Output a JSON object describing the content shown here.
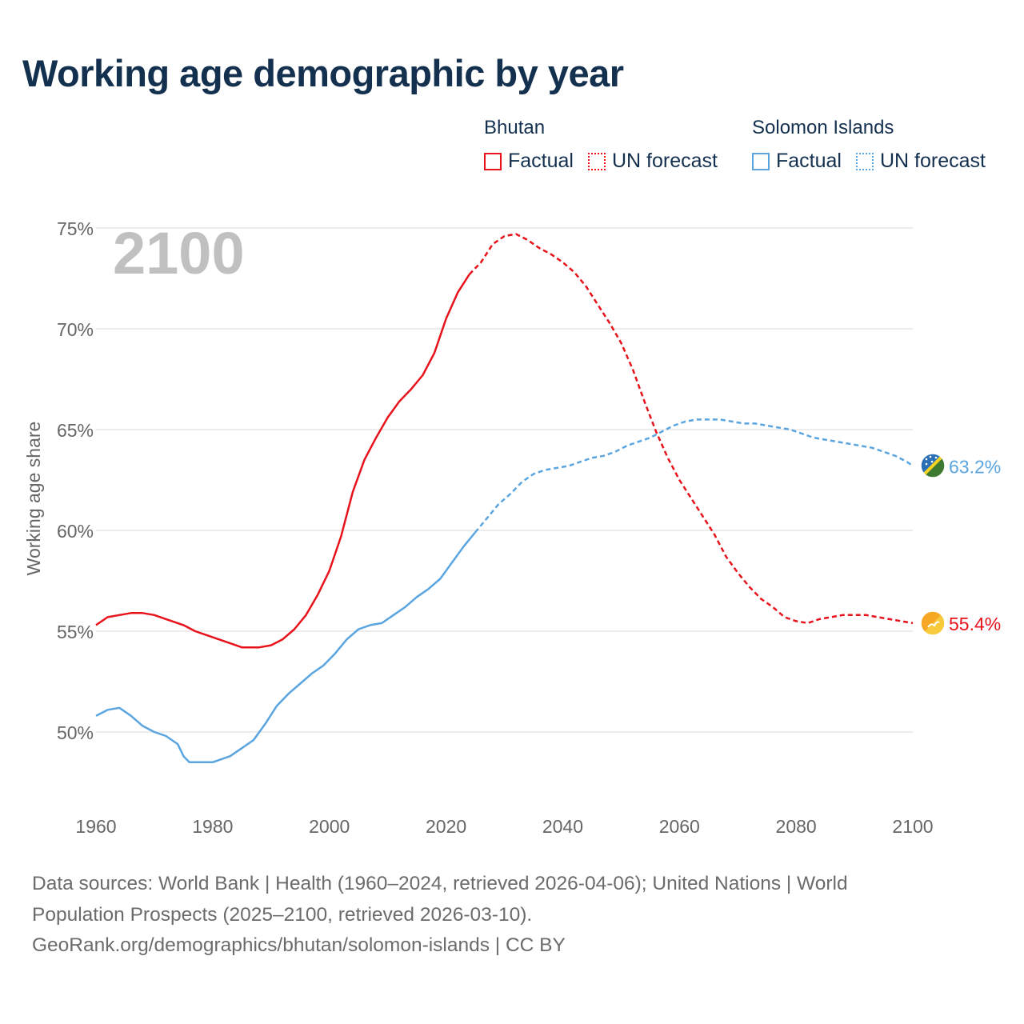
{
  "title": "Working age demographic by year",
  "legend": {
    "groups": [
      {
        "name": "Bhutan",
        "color": "#e8121b",
        "factual_label": "Factual",
        "forecast_label": "UN forecast"
      },
      {
        "name": "Solomon Islands",
        "color": "#5aa5e0",
        "factual_label": "Factual",
        "forecast_label": "UN forecast"
      }
    ]
  },
  "source": {
    "line1": "Data sources: World Bank | Health (1960–2024, retrieved 2026-04-06); United Nations | World",
    "line2": "Population Prospects (2025–2100, retrieved 2026-03-10).",
    "line3": "GeoRank.org/demographics/bhutan/solomon-islands | CC BY"
  },
  "chart_data": {
    "type": "line",
    "title": "Working age demographic by year",
    "year_label": "2100",
    "xlabel": "",
    "ylabel": "Working age share",
    "xlim": [
      1960,
      2100
    ],
    "ylim": [
      46,
      76
    ],
    "x_ticks": [
      {
        "value": 1960,
        "label": "1960"
      },
      {
        "value": 1980,
        "label": "1980"
      },
      {
        "value": 2000,
        "label": "2000"
      },
      {
        "value": 2020,
        "label": "2020"
      },
      {
        "value": 2040,
        "label": "2040"
      },
      {
        "value": 2060,
        "label": "2060"
      },
      {
        "value": 2080,
        "label": "2080"
      },
      {
        "value": 2100,
        "label": "2100"
      }
    ],
    "y_ticks": [
      {
        "value": 50,
        "label": "50%"
      },
      {
        "value": 55,
        "label": "55%"
      },
      {
        "value": 60,
        "label": "60%"
      },
      {
        "value": 65,
        "label": "65%"
      },
      {
        "value": 70,
        "label": "70%"
      },
      {
        "value": 75,
        "label": "75%"
      }
    ],
    "grid": true,
    "forecast_start": 2025,
    "series": [
      {
        "name": "Bhutan",
        "color": "#e8121b",
        "end_label": "55.4%",
        "flag": "bhutan-flag",
        "x": [
          1960,
          1962,
          1964,
          1966,
          1968,
          1970,
          1972,
          1975,
          1977,
          1980,
          1983,
          1985,
          1988,
          1990,
          1992,
          1994,
          1996,
          1998,
          2000,
          2002,
          2004,
          2006,
          2008,
          2010,
          2012,
          2014,
          2016,
          2018,
          2020,
          2022,
          2024,
          2026,
          2028,
          2030,
          2032,
          2034,
          2036,
          2038,
          2040,
          2042,
          2044,
          2046,
          2048,
          2050,
          2052,
          2054,
          2056,
          2058,
          2060,
          2062,
          2064,
          2066,
          2068,
          2070,
          2072,
          2074,
          2076,
          2078,
          2080,
          2082,
          2084,
          2086,
          2088,
          2090,
          2092,
          2094,
          2096,
          2098,
          2100
        ],
        "y": [
          55.3,
          55.7,
          55.8,
          55.9,
          55.9,
          55.8,
          55.6,
          55.3,
          55.0,
          54.7,
          54.4,
          54.2,
          54.2,
          54.3,
          54.6,
          55.1,
          55.8,
          56.8,
          58.0,
          59.7,
          61.9,
          63.5,
          64.6,
          65.6,
          66.4,
          67.0,
          67.7,
          68.8,
          70.5,
          71.8,
          72.7,
          73.3,
          74.2,
          74.6,
          74.7,
          74.4,
          74.0,
          73.7,
          73.3,
          72.8,
          72.1,
          71.2,
          70.3,
          69.3,
          68.0,
          66.4,
          64.9,
          63.6,
          62.5,
          61.6,
          60.7,
          59.8,
          58.7,
          57.9,
          57.2,
          56.6,
          56.2,
          55.7,
          55.5,
          55.4,
          55.6,
          55.7,
          55.8,
          55.8,
          55.8,
          55.7,
          55.6,
          55.5,
          55.4
        ]
      },
      {
        "name": "Solomon Islands",
        "color": "#5aa5e0",
        "end_label": "63.2%",
        "flag": "solomon-islands-flag",
        "x": [
          1960,
          1962,
          1964,
          1966,
          1968,
          1970,
          1972,
          1974,
          1975,
          1976,
          1978,
          1980,
          1983,
          1985,
          1987,
          1989,
          1991,
          1993,
          1995,
          1997,
          1999,
          2001,
          2003,
          2005,
          2007,
          2009,
          2011,
          2013,
          2015,
          2017,
          2019,
          2021,
          2023,
          2025,
          2027,
          2029,
          2031,
          2033,
          2035,
          2037,
          2039,
          2041,
          2043,
          2045,
          2047,
          2049,
          2051,
          2053,
          2055,
          2057,
          2059,
          2061,
          2063,
          2065,
          2067,
          2069,
          2071,
          2073,
          2075,
          2077,
          2079,
          2081,
          2083,
          2085,
          2087,
          2089,
          2091,
          2093,
          2095,
          2097,
          2099,
          2100
        ],
        "y": [
          50.8,
          51.1,
          51.2,
          50.8,
          50.3,
          50.0,
          49.8,
          49.4,
          48.8,
          48.5,
          48.5,
          48.5,
          48.8,
          49.2,
          49.6,
          50.4,
          51.3,
          51.9,
          52.4,
          52.9,
          53.3,
          53.9,
          54.6,
          55.1,
          55.3,
          55.4,
          55.8,
          56.2,
          56.7,
          57.1,
          57.6,
          58.4,
          59.2,
          59.9,
          60.6,
          61.3,
          61.8,
          62.4,
          62.8,
          63.0,
          63.1,
          63.2,
          63.4,
          63.6,
          63.7,
          63.9,
          64.2,
          64.4,
          64.6,
          64.9,
          65.2,
          65.4,
          65.5,
          65.5,
          65.5,
          65.4,
          65.3,
          65.3,
          65.2,
          65.1,
          65.0,
          64.8,
          64.6,
          64.5,
          64.4,
          64.3,
          64.2,
          64.1,
          63.9,
          63.7,
          63.4,
          63.2
        ]
      }
    ]
  }
}
